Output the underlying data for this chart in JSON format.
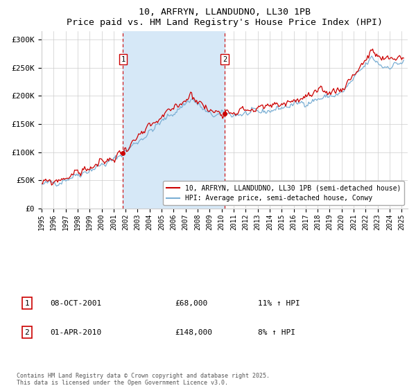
{
  "title": "10, ARFRYN, LLANDUDNO, LL30 1PB",
  "subtitle": "Price paid vs. HM Land Registry's House Price Index (HPI)",
  "ylabel_ticks": [
    "£0",
    "£50K",
    "£100K",
    "£150K",
    "£200K",
    "£250K",
    "£300K"
  ],
  "ytick_values": [
    0,
    50000,
    100000,
    150000,
    200000,
    250000,
    300000
  ],
  "ylim": [
    0,
    315000
  ],
  "xlim_start": 1995.0,
  "xlim_end": 2025.5,
  "purchase1_date": 2001.78,
  "purchase1_price": 68000,
  "purchase2_date": 2010.25,
  "purchase2_price": 148000,
  "shade_color": "#d6e8f7",
  "line_color_price": "#cc0000",
  "line_color_hpi": "#7bafd4",
  "vline_color": "#cc0000",
  "legend_label_price": "10, ARFRYN, LLANDUDNO, LL30 1PB (semi-detached house)",
  "legend_label_hpi": "HPI: Average price, semi-detached house, Conwy",
  "annotation1_label": "1",
  "annotation1_date": "08-OCT-2001",
  "annotation1_price": "£68,000",
  "annotation1_hpi": "11% ↑ HPI",
  "annotation2_label": "2",
  "annotation2_date": "01-APR-2010",
  "annotation2_price": "£148,000",
  "annotation2_hpi": "8% ↑ HPI",
  "footer": "Contains HM Land Registry data © Crown copyright and database right 2025.\nThis data is licensed under the Open Government Licence v3.0.",
  "background_color": "#ffffff",
  "plot_bg_color": "#ffffff",
  "grid_color": "#cccccc",
  "marker_color": "#cc0000"
}
